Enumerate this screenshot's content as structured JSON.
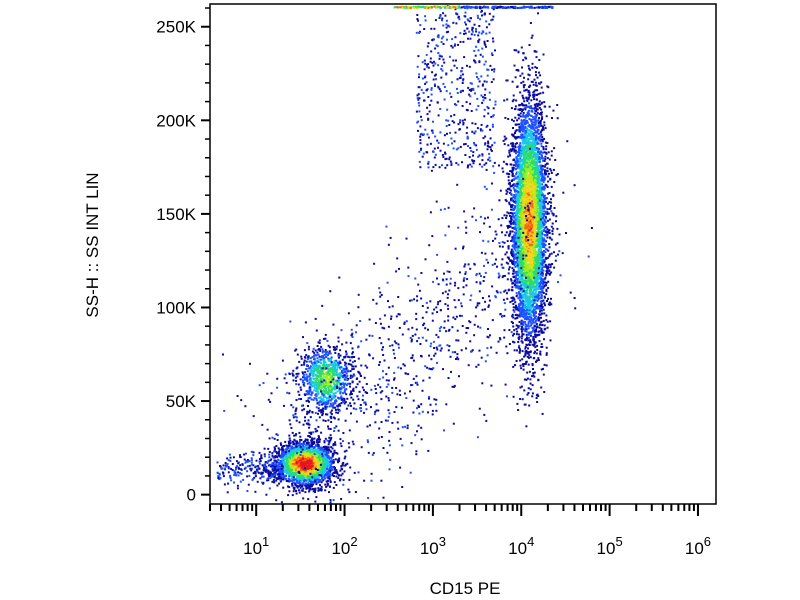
{
  "chart_data": {
    "type": "scatter",
    "subtype": "flow-cytometry-density-dot-plot",
    "xlabel": "CD15 PE",
    "ylabel": "SS-H :: SS INT LIN",
    "x_scale": "log",
    "xlim": [
      3,
      1600000
    ],
    "ylim": [
      -5000,
      262144
    ],
    "x_ticks": [
      {
        "value": 10,
        "base": "10",
        "exp": "1"
      },
      {
        "value": 100,
        "base": "10",
        "exp": "2"
      },
      {
        "value": 1000,
        "base": "10",
        "exp": "3"
      },
      {
        "value": 10000,
        "base": "10",
        "exp": "4"
      },
      {
        "value": 100000,
        "base": "10",
        "exp": "5"
      },
      {
        "value": 1000000,
        "base": "10",
        "exp": "6"
      }
    ],
    "y_ticks": [
      {
        "value": 0,
        "label": "0"
      },
      {
        "value": 50000,
        "label": "50K"
      },
      {
        "value": 100000,
        "label": "100K"
      },
      {
        "value": 150000,
        "label": "150K"
      },
      {
        "value": 200000,
        "label": "200K"
      },
      {
        "value": 250000,
        "label": "250K"
      }
    ],
    "grid": false,
    "legend": "none",
    "color_scale": [
      "#0a0aa0",
      "#1e50ff",
      "#19c8e6",
      "#2adc6e",
      "#a0ee1e",
      "#ffd21e",
      "#ff6414",
      "#e6141e"
    ],
    "populations": [
      {
        "x_center": 35,
        "y_center": 17000,
        "x_spread_decades": 0.16,
        "y_spread": 5500,
        "count": 2600,
        "peak_density": 1.0
      },
      {
        "x_center": 60,
        "y_center": 62000,
        "x_spread_decades": 0.15,
        "y_spread": 9000,
        "count": 900,
        "peak_density": 0.55
      },
      {
        "x_center": 12000,
        "y_center": 147000,
        "x_spread_decades": 0.1,
        "y_spread": 32000,
        "count": 5200,
        "peak_density": 0.8
      }
    ]
  }
}
